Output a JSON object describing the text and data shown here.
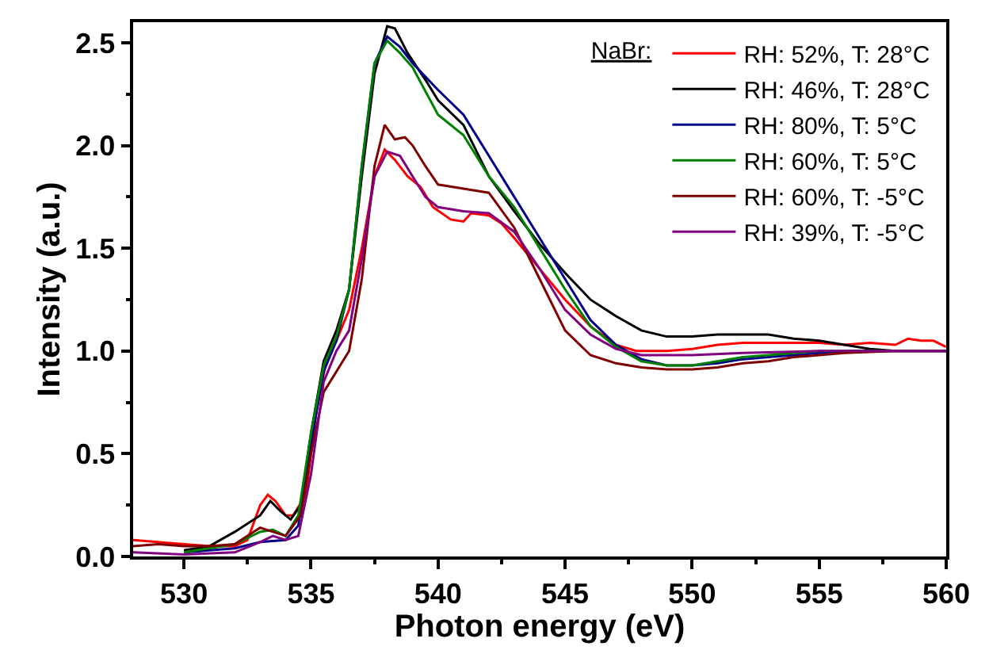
{
  "chart_data": {
    "type": "line",
    "xlabel": "Photon energy (eV)",
    "ylabel": "Intensity (a.u.)",
    "legend_title": "NaBr:",
    "xlim": [
      528,
      560
    ],
    "xticks": [
      530,
      535,
      540,
      545,
      550,
      555,
      560
    ],
    "ylim": [
      0,
      2.6
    ],
    "yticks": [
      {
        "value": 0,
        "label": "0.0"
      },
      0.5,
      {
        "value": 1,
        "label": "1.0"
      },
      1.5,
      {
        "value": 2,
        "label": "2.0"
      },
      2.5
    ],
    "legend": "top right",
    "marker": "none",
    "line_style": "solid",
    "series": [
      {
        "name": "RH: 52%, T: 28°C",
        "color": "#ff0000",
        "x": [
          528,
          530,
          531,
          532,
          532.5,
          533,
          533.3,
          533.6,
          534,
          534.3,
          534.8,
          535.2,
          535.6,
          536,
          536.5,
          537,
          537.5,
          537.9,
          538.3,
          538.8,
          539.3,
          539.8,
          540.5,
          541,
          541.3,
          542,
          542.5,
          543,
          544,
          545,
          546,
          547,
          547.8,
          549,
          550,
          551,
          552,
          553,
          554,
          555,
          556,
          557,
          558,
          558.5,
          559,
          559.5,
          560
        ],
        "values": [
          0.08,
          0.06,
          0.05,
          0.05,
          0.08,
          0.25,
          0.3,
          0.27,
          0.2,
          0.2,
          0.3,
          0.7,
          0.95,
          1.05,
          1.2,
          1.5,
          1.85,
          1.98,
          1.93,
          1.85,
          1.8,
          1.7,
          1.64,
          1.63,
          1.67,
          1.66,
          1.62,
          1.55,
          1.4,
          1.25,
          1.12,
          1.03,
          1.0,
          1.0,
          1.01,
          1.03,
          1.04,
          1.04,
          1.04,
          1.04,
          1.03,
          1.04,
          1.03,
          1.06,
          1.05,
          1.05,
          1.02
        ]
      },
      {
        "name": "RH: 46%, T: 28°C",
        "color": "#000000",
        "x": [
          530,
          531,
          532,
          533,
          533.4,
          533.8,
          534.2,
          534.6,
          535,
          535.5,
          536,
          536.5,
          537,
          537.5,
          538,
          538.3,
          538.8,
          539.5,
          540,
          541,
          542,
          543,
          544,
          545,
          546,
          547,
          548,
          549,
          550,
          551,
          552,
          553,
          554,
          555,
          556,
          557,
          558,
          560
        ],
        "values": [
          0.03,
          0.05,
          0.12,
          0.2,
          0.27,
          0.22,
          0.18,
          0.25,
          0.6,
          0.95,
          1.1,
          1.3,
          1.85,
          2.35,
          2.58,
          2.57,
          2.45,
          2.32,
          2.22,
          2.1,
          1.85,
          1.68,
          1.52,
          1.38,
          1.25,
          1.17,
          1.1,
          1.07,
          1.07,
          1.08,
          1.08,
          1.08,
          1.06,
          1.05,
          1.03,
          1.01,
          1.0,
          1.0
        ]
      },
      {
        "name": "RH: 80%, T: 5°C",
        "color": "#00008b",
        "x": [
          530,
          532,
          533,
          534,
          534.5,
          535,
          535.5,
          536,
          536.5,
          537,
          537.5,
          538,
          538.5,
          539,
          540,
          541,
          542,
          543,
          544,
          545,
          546,
          547,
          548,
          549,
          550,
          551,
          552,
          553,
          554,
          555,
          556,
          558,
          560
        ],
        "values": [
          0.02,
          0.04,
          0.07,
          0.08,
          0.15,
          0.55,
          0.9,
          1.05,
          1.3,
          1.9,
          2.4,
          2.53,
          2.48,
          2.4,
          2.27,
          2.15,
          1.95,
          1.75,
          1.55,
          1.35,
          1.15,
          1.03,
          0.96,
          0.93,
          0.93,
          0.94,
          0.96,
          0.97,
          0.98,
          0.99,
          1.0,
          1.0,
          1.0
        ]
      },
      {
        "name": "RH: 60%, T: 5°C",
        "color": "#008000",
        "x": [
          530,
          532,
          533,
          533.5,
          534,
          534.5,
          535,
          535.5,
          536,
          536.5,
          537,
          537.5,
          538,
          538.5,
          539,
          540,
          541,
          542,
          543,
          544,
          545,
          546,
          547,
          548,
          549,
          550,
          551,
          552,
          553,
          554,
          555,
          556,
          560
        ],
        "values": [
          0.02,
          0.06,
          0.12,
          0.13,
          0.1,
          0.2,
          0.6,
          0.93,
          1.07,
          1.3,
          1.9,
          2.4,
          2.51,
          2.45,
          2.38,
          2.15,
          2.05,
          1.85,
          1.7,
          1.5,
          1.3,
          1.12,
          1.02,
          0.95,
          0.93,
          0.93,
          0.95,
          0.97,
          0.98,
          0.99,
          1.0,
          1.0,
          1.0
        ]
      },
      {
        "name": "RH: 60%, T: -5°C",
        "color": "#800000",
        "x": [
          528,
          529,
          530,
          531,
          532,
          532.5,
          533,
          533.5,
          534,
          534.6,
          535,
          535.5,
          536,
          536.5,
          537,
          537.5,
          537.9,
          538.3,
          538.7,
          539,
          539.5,
          540,
          541,
          542,
          543,
          544,
          545,
          546,
          547,
          548,
          549,
          550,
          551,
          552,
          553,
          554,
          555,
          556,
          558,
          560
        ],
        "values": [
          0.05,
          0.06,
          0.05,
          0.05,
          0.06,
          0.1,
          0.14,
          0.12,
          0.1,
          0.2,
          0.5,
          0.8,
          0.9,
          1.0,
          1.35,
          1.9,
          2.1,
          2.03,
          2.04,
          2.0,
          1.9,
          1.81,
          1.79,
          1.77,
          1.6,
          1.35,
          1.1,
          0.98,
          0.94,
          0.92,
          0.91,
          0.91,
          0.92,
          0.94,
          0.95,
          0.97,
          0.98,
          0.99,
          1.0,
          1.0
        ]
      },
      {
        "name": "RH: 39%, T: -5°C",
        "color": "#800080",
        "x": [
          528,
          530,
          532,
          533,
          533.5,
          534,
          534.5,
          535,
          535.5,
          536,
          536.5,
          537,
          537.5,
          538,
          538.5,
          539,
          539.5,
          540,
          541,
          542,
          543,
          544,
          545,
          546,
          547,
          548,
          549,
          550,
          552,
          555,
          560
        ],
        "values": [
          0.02,
          0.01,
          0.02,
          0.07,
          0.1,
          0.08,
          0.1,
          0.4,
          0.85,
          1.0,
          1.1,
          1.45,
          1.85,
          1.97,
          1.95,
          1.85,
          1.75,
          1.7,
          1.68,
          1.67,
          1.58,
          1.4,
          1.2,
          1.08,
          1.01,
          0.98,
          0.98,
          0.98,
          0.99,
          1.0,
          1.0
        ]
      }
    ]
  }
}
